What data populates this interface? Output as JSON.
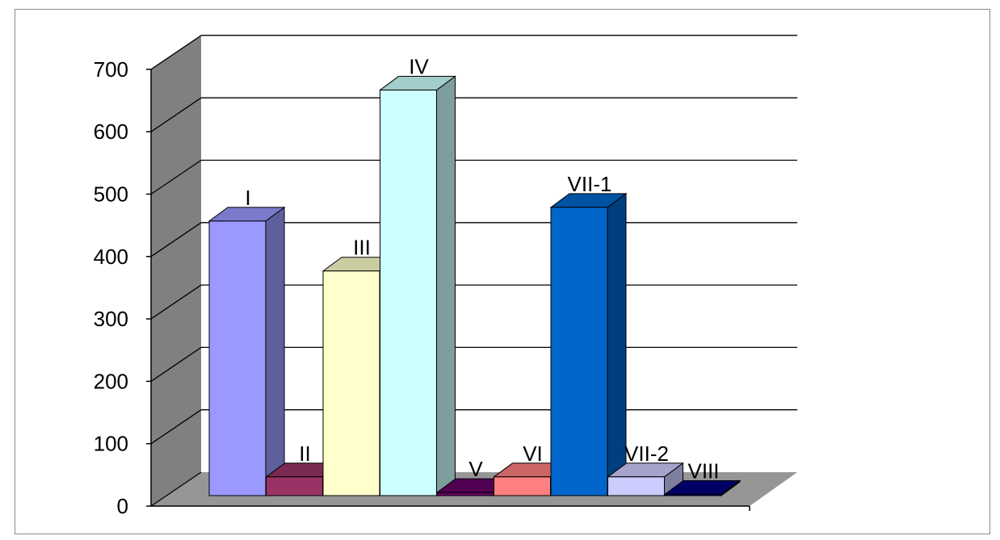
{
  "chart_data": {
    "type": "bar",
    "three_d": true,
    "categories": [
      "I",
      "II",
      "III",
      "IV",
      "V",
      "VI",
      "VII-1",
      "VII-2",
      "VIII"
    ],
    "values": [
      440,
      30,
      360,
      650,
      5,
      30,
      462,
      30,
      2
    ],
    "colors": [
      "#9999ff",
      "#993366",
      "#ffffcc",
      "#ccffff",
      "#660066",
      "#ff8080",
      "#0066cc",
      "#ccccff",
      "#000080"
    ],
    "ylim": [
      0,
      700
    ],
    "yticks": [
      "0",
      "100",
      "200",
      "300",
      "400",
      "500",
      "600",
      "700"
    ],
    "gridlines": true,
    "legend": "none",
    "wall_color": "#808080",
    "floor_color": "#969696"
  }
}
